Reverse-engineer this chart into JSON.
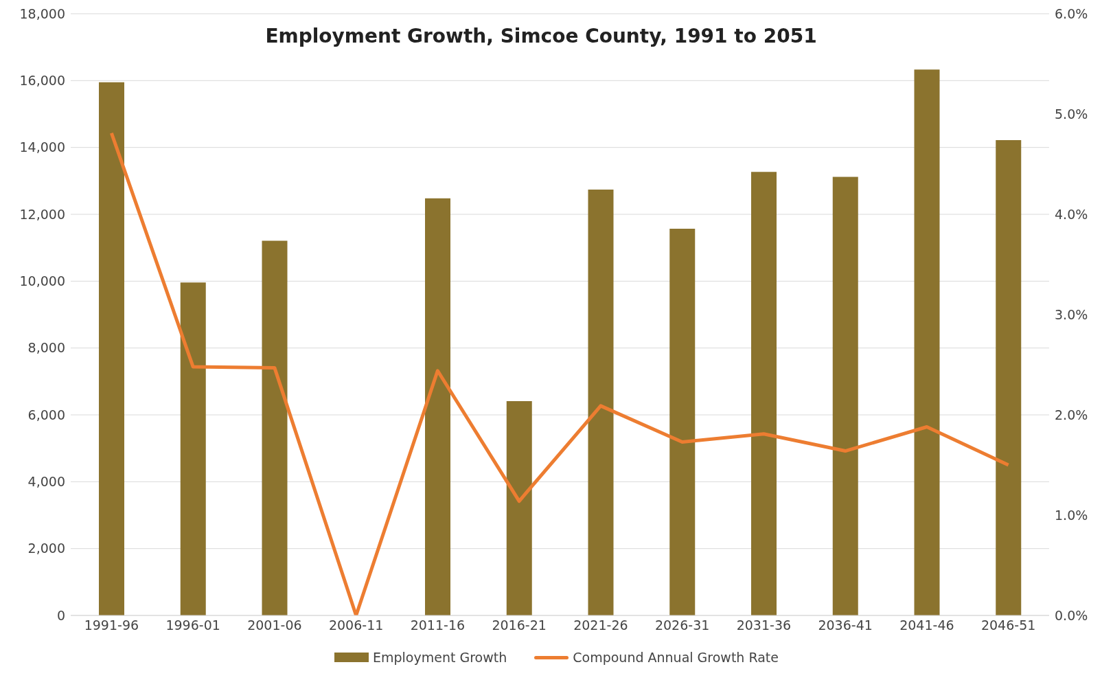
{
  "chart_data": {
    "type": "bar",
    "title": "Employment Growth, Simcoe County, 1991 to 2051",
    "categories": [
      "1991-96",
      "1996-01",
      "2001-06",
      "2006-11",
      "2011-16",
      "2016-21",
      "2021-26",
      "2026-31",
      "2031-36",
      "2036-41",
      "2041-46",
      "2046-51"
    ],
    "series": [
      {
        "name": "Employment Growth",
        "color": "#8b732e",
        "values": [
          15950,
          9960,
          11210,
          0,
          12480,
          6410,
          12740,
          11570,
          13270,
          13120,
          16330,
          14220
        ]
      },
      {
        "name": "Compound Annual Growth Rate",
        "type": "line",
        "axis": "y2",
        "color": "#ed7d31",
        "values": [
          4.81,
          2.48,
          2.47,
          0,
          2.44,
          1.14,
          2.09,
          1.73,
          1.81,
          1.64,
          1.88,
          1.5
        ]
      }
    ],
    "ylim": [
      0,
      18000
    ],
    "yticks": [
      {
        "value": 0,
        "label": "0"
      },
      {
        "value": 2000,
        "label": "2,000"
      },
      {
        "value": 4000,
        "label": "4,000"
      },
      {
        "value": 6000,
        "label": "6,000"
      },
      {
        "value": 8000,
        "label": "8,000"
      },
      {
        "value": 10000,
        "label": "10,000"
      },
      {
        "value": 12000,
        "label": "12,000"
      },
      {
        "value": 14000,
        "label": "14,000"
      },
      {
        "value": 16000,
        "label": "16,000"
      },
      {
        "value": 18000,
        "label": "18,000"
      }
    ],
    "y2lim": [
      0,
      6
    ],
    "y2ticks": [
      {
        "value": 0,
        "label": "0.0%"
      },
      {
        "value": 1,
        "label": "1.0%"
      },
      {
        "value": 2,
        "label": "2.0%"
      },
      {
        "value": 3,
        "label": "3.0%"
      },
      {
        "value": 4,
        "label": "4.0%"
      },
      {
        "value": 5,
        "label": "5.0%"
      },
      {
        "value": 6,
        "label": "6.0%"
      }
    ],
    "grid": "y",
    "legend": "bottom",
    "marker": "none",
    "line_style": "solid"
  }
}
